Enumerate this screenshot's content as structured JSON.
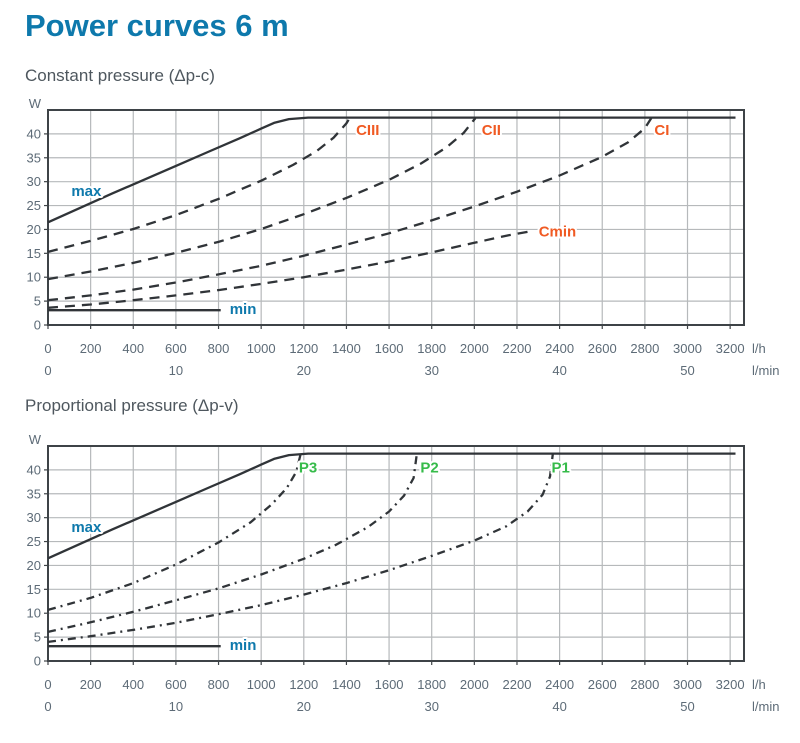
{
  "page": {
    "title": "Power curves 6 m"
  },
  "colors": {
    "title_blue": "#0e79ac",
    "subtitle_gray": "#4e575e",
    "tick_text": "#5d6b77",
    "grid": "#b6b9bb",
    "border": "#3e4347",
    "curve": "#303438",
    "blue": "#0e79ac",
    "orange": "#f05a23",
    "green": "#36bb4a"
  },
  "chart_data": [
    {
      "type": "line",
      "name": "constant-pressure",
      "subtitle": "Constant pressure (Δp-c)",
      "y_unit": "W",
      "x_units": [
        "l/h",
        "l/min"
      ],
      "x_ticks": [
        0,
        200,
        400,
        600,
        800,
        1000,
        1200,
        1400,
        1600,
        1800,
        2000,
        2200,
        2400,
        2600,
        2800,
        3000,
        3200
      ],
      "x_ticks_secondary": [
        {
          "label": "0",
          "at": 0
        },
        {
          "label": "10",
          "at": 600
        },
        {
          "label": "20",
          "at": 1200
        },
        {
          "label": "30",
          "at": 1800
        },
        {
          "label": "40",
          "at": 2400
        },
        {
          "label": "50",
          "at": 3000
        }
      ],
      "y_ticks": [
        0,
        5,
        10,
        15,
        20,
        25,
        30,
        35,
        40
      ],
      "xlim": [
        0,
        3265
      ],
      "ylim": [
        0,
        45
      ],
      "grid": true,
      "series": [
        {
          "name": "max",
          "style": "solid",
          "color": "curve",
          "label": {
            "text": "max",
            "color": "blue",
            "x": 180,
            "y": 28
          },
          "points": [
            [
              0,
              21.5
            ],
            [
              150,
              24.5
            ],
            [
              300,
              27.5
            ],
            [
              450,
              30.4
            ],
            [
              600,
              33.3
            ],
            [
              750,
              36.2
            ],
            [
              900,
              39.1
            ],
            [
              1000,
              41.1
            ],
            [
              1060,
              42.3
            ],
            [
              1130,
              43.1
            ],
            [
              1220,
              43.4
            ],
            [
              3225,
              43.4
            ]
          ]
        },
        {
          "name": "min",
          "style": "solid",
          "color": "curve",
          "label": {
            "text": "min",
            "color": "blue",
            "x": 915,
            "y": 3.4
          },
          "points": [
            [
              0,
              3.1
            ],
            [
              810,
              3.1
            ]
          ]
        },
        {
          "name": "CIII",
          "style": "dashed",
          "color": "curve",
          "label": {
            "text": "CIII",
            "color": "orange",
            "x": 1500,
            "y": 40.8
          },
          "points": [
            [
              0,
              15.3
            ],
            [
              200,
              17.6
            ],
            [
              400,
              20.1
            ],
            [
              600,
              23.0
            ],
            [
              800,
              26.4
            ],
            [
              1000,
              30.2
            ],
            [
              1150,
              33.5
            ],
            [
              1260,
              36.4
            ],
            [
              1340,
              39.2
            ],
            [
              1400,
              42.2
            ],
            [
              1415,
              43.3
            ]
          ]
        },
        {
          "name": "CII",
          "style": "dashed",
          "color": "curve",
          "label": {
            "text": "CII",
            "color": "orange",
            "x": 2080,
            "y": 40.8
          },
          "points": [
            [
              0,
              9.6
            ],
            [
              200,
              11.2
            ],
            [
              400,
              13.0
            ],
            [
              600,
              15.1
            ],
            [
              800,
              17.4
            ],
            [
              1000,
              20.1
            ],
            [
              1200,
              23.2
            ],
            [
              1400,
              26.6
            ],
            [
              1600,
              30.4
            ],
            [
              1750,
              33.8
            ],
            [
              1870,
              37.2
            ],
            [
              1950,
              40.2
            ],
            [
              2005,
              43.3
            ]
          ]
        },
        {
          "name": "CI",
          "style": "dashed",
          "color": "curve",
          "label": {
            "text": "CI",
            "color": "orange",
            "x": 2880,
            "y": 40.8
          },
          "points": [
            [
              0,
              5.2
            ],
            [
              200,
              6.2
            ],
            [
              400,
              7.4
            ],
            [
              600,
              8.9
            ],
            [
              800,
              10.6
            ],
            [
              1000,
              12.4
            ],
            [
              1200,
              14.5
            ],
            [
              1400,
              16.8
            ],
            [
              1600,
              19.2
            ],
            [
              1800,
              21.9
            ],
            [
              2000,
              24.8
            ],
            [
              2200,
              27.9
            ],
            [
              2400,
              31.3
            ],
            [
              2600,
              35.2
            ],
            [
              2720,
              38.2
            ],
            [
              2800,
              41.2
            ],
            [
              2830,
              43.3
            ]
          ]
        },
        {
          "name": "Cmin",
          "style": "dashed",
          "color": "curve",
          "label": {
            "text": "Cmin",
            "color": "orange",
            "x": 2390,
            "y": 19.6
          },
          "points": [
            [
              0,
              3.6
            ],
            [
              200,
              4.3
            ],
            [
              400,
              5.2
            ],
            [
              600,
              6.2
            ],
            [
              800,
              7.3
            ],
            [
              1000,
              8.6
            ],
            [
              1200,
              10.0
            ],
            [
              1400,
              11.6
            ],
            [
              1600,
              13.3
            ],
            [
              1800,
              15.2
            ],
            [
              2000,
              17.2
            ],
            [
              2150,
              18.7
            ],
            [
              2260,
              19.6
            ]
          ]
        }
      ]
    },
    {
      "type": "line",
      "name": "proportional-pressure",
      "subtitle": "Proportional pressure (Δp-v)",
      "y_unit": "W",
      "x_units": [
        "l/h",
        "l/min"
      ],
      "x_ticks": [
        0,
        200,
        400,
        600,
        800,
        1000,
        1200,
        1400,
        1600,
        1800,
        2000,
        2200,
        2400,
        2600,
        2800,
        3000,
        3200
      ],
      "x_ticks_secondary": [
        {
          "label": "0",
          "at": 0
        },
        {
          "label": "10",
          "at": 600
        },
        {
          "label": "20",
          "at": 1200
        },
        {
          "label": "30",
          "at": 1800
        },
        {
          "label": "40",
          "at": 2400
        },
        {
          "label": "50",
          "at": 3000
        }
      ],
      "y_ticks": [
        0,
        5,
        10,
        15,
        20,
        25,
        30,
        35,
        40
      ],
      "xlim": [
        0,
        3265
      ],
      "ylim": [
        0,
        45
      ],
      "grid": true,
      "series": [
        {
          "name": "max",
          "style": "solid",
          "color": "curve",
          "label": {
            "text": "max",
            "color": "blue",
            "x": 180,
            "y": 28
          },
          "points": [
            [
              0,
              21.5
            ],
            [
              150,
              24.5
            ],
            [
              300,
              27.5
            ],
            [
              450,
              30.4
            ],
            [
              600,
              33.3
            ],
            [
              750,
              36.2
            ],
            [
              900,
              39.1
            ],
            [
              1000,
              41.1
            ],
            [
              1060,
              42.3
            ],
            [
              1130,
              43.1
            ],
            [
              1220,
              43.4
            ],
            [
              3225,
              43.4
            ]
          ]
        },
        {
          "name": "min",
          "style": "solid",
          "color": "curve",
          "label": {
            "text": "min",
            "color": "blue",
            "x": 915,
            "y": 3.4
          },
          "points": [
            [
              0,
              3.1
            ],
            [
              810,
              3.1
            ]
          ]
        },
        {
          "name": "P3",
          "style": "dashdot",
          "color": "curve",
          "label": {
            "text": "P3",
            "color": "green",
            "x": 1220,
            "y": 40.5
          },
          "points": [
            [
              0,
              10.7
            ],
            [
              200,
              13.2
            ],
            [
              400,
              16.3
            ],
            [
              600,
              20.2
            ],
            [
              800,
              24.8
            ],
            [
              950,
              29.0
            ],
            [
              1050,
              32.8
            ],
            [
              1120,
              36.2
            ],
            [
              1165,
              39.6
            ],
            [
              1185,
              43.3
            ]
          ]
        },
        {
          "name": "P2",
          "style": "dashdot",
          "color": "curve",
          "label": {
            "text": "P2",
            "color": "green",
            "x": 1790,
            "y": 40.5
          },
          "points": [
            [
              0,
              6.1
            ],
            [
              200,
              8.1
            ],
            [
              400,
              10.3
            ],
            [
              600,
              12.7
            ],
            [
              800,
              15.2
            ],
            [
              1000,
              18.1
            ],
            [
              1200,
              21.4
            ],
            [
              1350,
              24.3
            ],
            [
              1500,
              28.0
            ],
            [
              1600,
              31.3
            ],
            [
              1670,
              34.6
            ],
            [
              1715,
              38.3
            ],
            [
              1730,
              43.3
            ]
          ]
        },
        {
          "name": "P1",
          "style": "dashdot",
          "color": "curve",
          "label": {
            "text": "P1",
            "color": "green",
            "x": 2405,
            "y": 40.5
          },
          "points": [
            [
              0,
              4.0
            ],
            [
              200,
              5.2
            ],
            [
              400,
              6.5
            ],
            [
              600,
              8.0
            ],
            [
              800,
              9.8
            ],
            [
              1000,
              11.7
            ],
            [
              1200,
              13.9
            ],
            [
              1400,
              16.3
            ],
            [
              1600,
              19.0
            ],
            [
              1800,
              22.0
            ],
            [
              2000,
              25.2
            ],
            [
              2150,
              28.2
            ],
            [
              2250,
              31.3
            ],
            [
              2320,
              34.8
            ],
            [
              2355,
              38.6
            ],
            [
              2368,
              43.3
            ]
          ]
        }
      ]
    }
  ]
}
